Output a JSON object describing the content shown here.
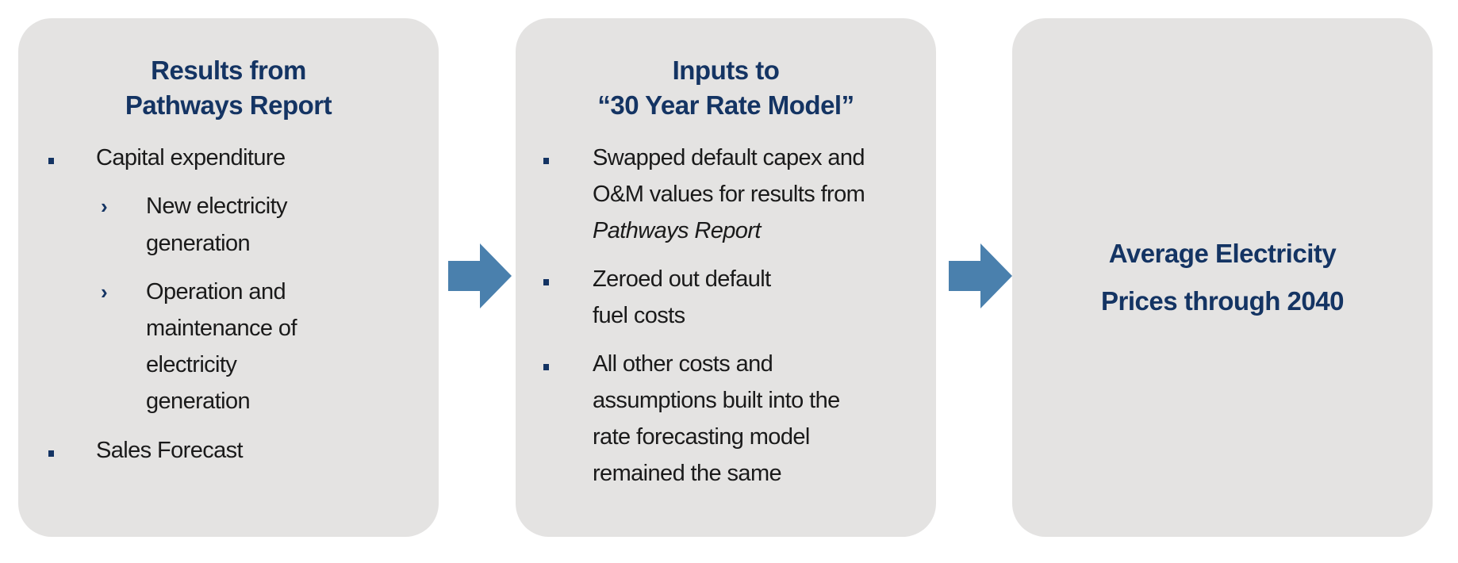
{
  "boxes": [
    {
      "title": [
        "Results from",
        "Pathways Report"
      ],
      "items": [
        {
          "level": 1,
          "lines": [
            "Capital expenditure"
          ]
        },
        {
          "level": 2,
          "lines": [
            "New electricity",
            "generation"
          ]
        },
        {
          "level": 2,
          "lines": [
            "Operation and",
            "maintenance of",
            "electricity",
            "generation"
          ]
        },
        {
          "level": 1,
          "lines": [
            "Sales Forecast"
          ]
        }
      ]
    },
    {
      "title": [
        "Inputs to",
        "“30 Year Rate Model”"
      ],
      "items": [
        {
          "level": 1,
          "lines": [
            "Swapped default capex and",
            "O&M values for results from",
            "Pathways Report"
          ]
        },
        {
          "level": 1,
          "lines": [
            "Zeroed out default",
            "fuel costs"
          ]
        },
        {
          "level": 1,
          "lines": [
            "All other costs and",
            "assumptions built into the",
            "rate forecasting model",
            "remained the same"
          ]
        }
      ]
    },
    {
      "title": [
        "Average Electricity",
        "Prices through 2040"
      ]
    }
  ],
  "colors": {
    "box": "#e4e3e2",
    "title": "#143463",
    "arrow": "#4a80ad"
  }
}
